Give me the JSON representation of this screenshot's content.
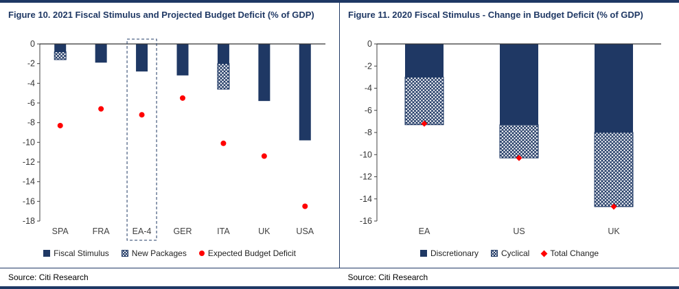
{
  "page": {
    "accent_color": "#1F3864",
    "dot_color": "#FF0000"
  },
  "figure10": {
    "title": "Figure 10. 2021 Fiscal Stimulus and Projected Budget Deficit (% of GDP)",
    "source": "Source: Citi Research",
    "legend": [
      "Fiscal Stimulus",
      "New Packages",
      "Expected Budget Deficit"
    ]
  },
  "figure11": {
    "title": "Figure 11. 2020 Fiscal Stimulus - Change in Budget Deficit (% of GDP)",
    "source": "Source: Citi Research",
    "legend": [
      "Discretionary",
      "Cyclical",
      "Total Change"
    ]
  },
  "chart_data": [
    {
      "type": "bar",
      "title": "Figure 10. 2021 Fiscal Stimulus and Projected Budget Deficit (% of GDP)",
      "categories": [
        "SPA",
        "FRA",
        "EA-4",
        "GER",
        "ITA",
        "UK",
        "USA"
      ],
      "series": [
        {
          "name": "Fiscal Stimulus",
          "style": "solid",
          "values": [
            -0.8,
            -1.9,
            -2.8,
            -3.2,
            -2.0,
            -5.8,
            -9.8
          ]
        },
        {
          "name": "New Packages",
          "style": "hatched",
          "values": [
            -0.8,
            0,
            0,
            0,
            -2.6,
            0,
            0
          ]
        }
      ],
      "points": {
        "name": "Expected Budget Deficit",
        "marker": "circle",
        "values": [
          -8.3,
          -6.6,
          -7.2,
          -5.5,
          -10.1,
          -11.4,
          -16.5
        ]
      },
      "ylim": [
        -18,
        0
      ],
      "ytick_step": 2,
      "grid": false,
      "legend_position": "bottom",
      "highlight_category": "EA-4"
    },
    {
      "type": "bar",
      "title": "Figure 11. 2020 Fiscal Stimulus - Change in Budget Deficit (% of GDP)",
      "categories": [
        "EA",
        "US",
        "UK"
      ],
      "series": [
        {
          "name": "Discretionary",
          "style": "solid",
          "values": [
            -3.0,
            -7.3,
            -8.0
          ]
        },
        {
          "name": "Cyclical",
          "style": "hatched",
          "values": [
            -4.3,
            -3.0,
            -6.7
          ]
        }
      ],
      "points": {
        "name": "Total Change",
        "marker": "diamond",
        "values": [
          -7.2,
          -10.3,
          -14.7
        ]
      },
      "ylim": [
        -16,
        0
      ],
      "ytick_step": 2,
      "grid": false,
      "legend_position": "bottom",
      "highlight_category": null
    }
  ]
}
